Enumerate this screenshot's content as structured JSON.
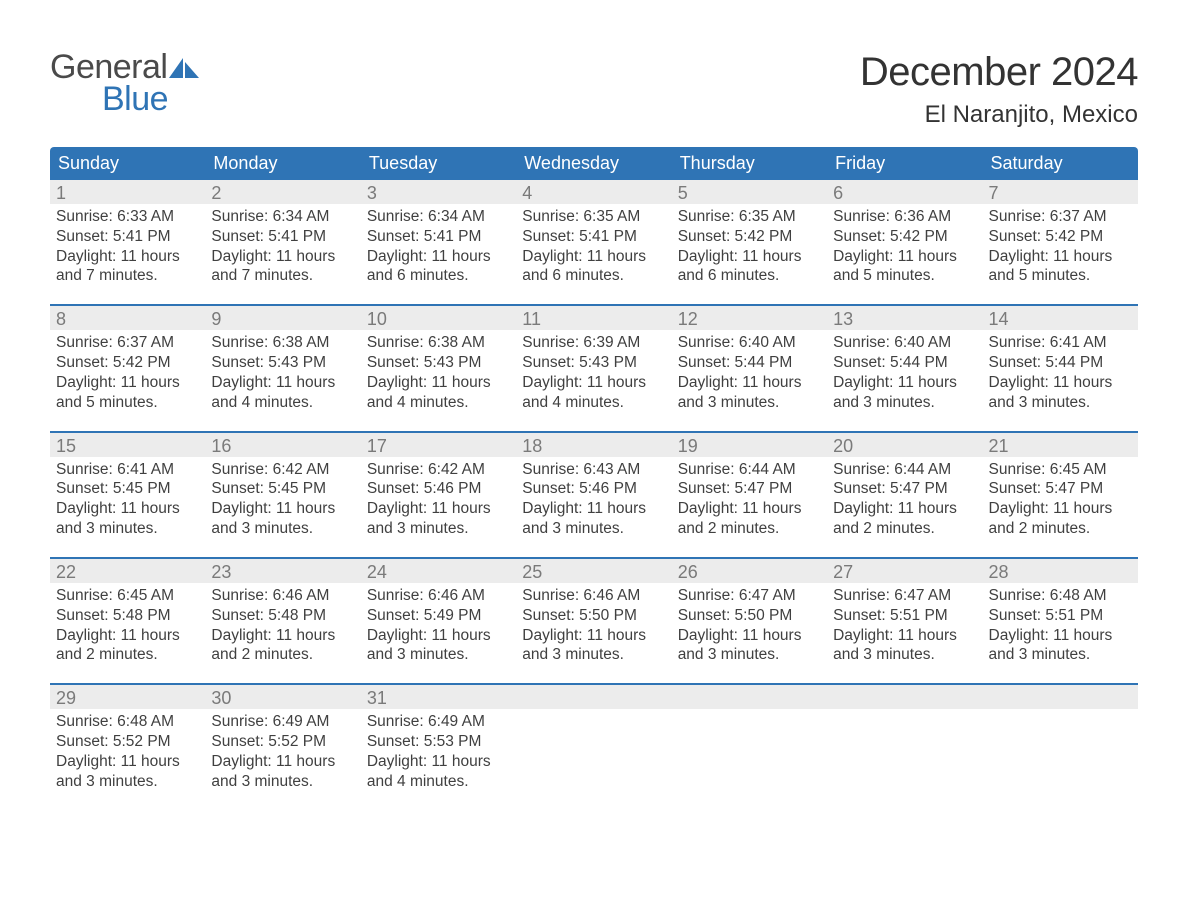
{
  "brand": {
    "general": "General",
    "blue": "Blue"
  },
  "colors": {
    "accent": "#2f74b5",
    "band": "#ececec",
    "text": "#404040",
    "muted": "#7a7a7a",
    "bg": "#ffffff"
  },
  "title": "December 2024",
  "location": "El Naranjito, Mexico",
  "dow": [
    "Sunday",
    "Monday",
    "Tuesday",
    "Wednesday",
    "Thursday",
    "Friday",
    "Saturday"
  ],
  "weeks": [
    [
      {
        "n": "1",
        "sr": "Sunrise: 6:33 AM",
        "ss": "Sunset: 5:41 PM",
        "d1": "Daylight: 11 hours",
        "d2": "and 7 minutes."
      },
      {
        "n": "2",
        "sr": "Sunrise: 6:34 AM",
        "ss": "Sunset: 5:41 PM",
        "d1": "Daylight: 11 hours",
        "d2": "and 7 minutes."
      },
      {
        "n": "3",
        "sr": "Sunrise: 6:34 AM",
        "ss": "Sunset: 5:41 PM",
        "d1": "Daylight: 11 hours",
        "d2": "and 6 minutes."
      },
      {
        "n": "4",
        "sr": "Sunrise: 6:35 AM",
        "ss": "Sunset: 5:41 PM",
        "d1": "Daylight: 11 hours",
        "d2": "and 6 minutes."
      },
      {
        "n": "5",
        "sr": "Sunrise: 6:35 AM",
        "ss": "Sunset: 5:42 PM",
        "d1": "Daylight: 11 hours",
        "d2": "and 6 minutes."
      },
      {
        "n": "6",
        "sr": "Sunrise: 6:36 AM",
        "ss": "Sunset: 5:42 PM",
        "d1": "Daylight: 11 hours",
        "d2": "and 5 minutes."
      },
      {
        "n": "7",
        "sr": "Sunrise: 6:37 AM",
        "ss": "Sunset: 5:42 PM",
        "d1": "Daylight: 11 hours",
        "d2": "and 5 minutes."
      }
    ],
    [
      {
        "n": "8",
        "sr": "Sunrise: 6:37 AM",
        "ss": "Sunset: 5:42 PM",
        "d1": "Daylight: 11 hours",
        "d2": "and 5 minutes."
      },
      {
        "n": "9",
        "sr": "Sunrise: 6:38 AM",
        "ss": "Sunset: 5:43 PM",
        "d1": "Daylight: 11 hours",
        "d2": "and 4 minutes."
      },
      {
        "n": "10",
        "sr": "Sunrise: 6:38 AM",
        "ss": "Sunset: 5:43 PM",
        "d1": "Daylight: 11 hours",
        "d2": "and 4 minutes."
      },
      {
        "n": "11",
        "sr": "Sunrise: 6:39 AM",
        "ss": "Sunset: 5:43 PM",
        "d1": "Daylight: 11 hours",
        "d2": "and 4 minutes."
      },
      {
        "n": "12",
        "sr": "Sunrise: 6:40 AM",
        "ss": "Sunset: 5:44 PM",
        "d1": "Daylight: 11 hours",
        "d2": "and 3 minutes."
      },
      {
        "n": "13",
        "sr": "Sunrise: 6:40 AM",
        "ss": "Sunset: 5:44 PM",
        "d1": "Daylight: 11 hours",
        "d2": "and 3 minutes."
      },
      {
        "n": "14",
        "sr": "Sunrise: 6:41 AM",
        "ss": "Sunset: 5:44 PM",
        "d1": "Daylight: 11 hours",
        "d2": "and 3 minutes."
      }
    ],
    [
      {
        "n": "15",
        "sr": "Sunrise: 6:41 AM",
        "ss": "Sunset: 5:45 PM",
        "d1": "Daylight: 11 hours",
        "d2": "and 3 minutes."
      },
      {
        "n": "16",
        "sr": "Sunrise: 6:42 AM",
        "ss": "Sunset: 5:45 PM",
        "d1": "Daylight: 11 hours",
        "d2": "and 3 minutes."
      },
      {
        "n": "17",
        "sr": "Sunrise: 6:42 AM",
        "ss": "Sunset: 5:46 PM",
        "d1": "Daylight: 11 hours",
        "d2": "and 3 minutes."
      },
      {
        "n": "18",
        "sr": "Sunrise: 6:43 AM",
        "ss": "Sunset: 5:46 PM",
        "d1": "Daylight: 11 hours",
        "d2": "and 3 minutes."
      },
      {
        "n": "19",
        "sr": "Sunrise: 6:44 AM",
        "ss": "Sunset: 5:47 PM",
        "d1": "Daylight: 11 hours",
        "d2": "and 2 minutes."
      },
      {
        "n": "20",
        "sr": "Sunrise: 6:44 AM",
        "ss": "Sunset: 5:47 PM",
        "d1": "Daylight: 11 hours",
        "d2": "and 2 minutes."
      },
      {
        "n": "21",
        "sr": "Sunrise: 6:45 AM",
        "ss": "Sunset: 5:47 PM",
        "d1": "Daylight: 11 hours",
        "d2": "and 2 minutes."
      }
    ],
    [
      {
        "n": "22",
        "sr": "Sunrise: 6:45 AM",
        "ss": "Sunset: 5:48 PM",
        "d1": "Daylight: 11 hours",
        "d2": "and 2 minutes."
      },
      {
        "n": "23",
        "sr": "Sunrise: 6:46 AM",
        "ss": "Sunset: 5:48 PM",
        "d1": "Daylight: 11 hours",
        "d2": "and 2 minutes."
      },
      {
        "n": "24",
        "sr": "Sunrise: 6:46 AM",
        "ss": "Sunset: 5:49 PM",
        "d1": "Daylight: 11 hours",
        "d2": "and 3 minutes."
      },
      {
        "n": "25",
        "sr": "Sunrise: 6:46 AM",
        "ss": "Sunset: 5:50 PM",
        "d1": "Daylight: 11 hours",
        "d2": "and 3 minutes."
      },
      {
        "n": "26",
        "sr": "Sunrise: 6:47 AM",
        "ss": "Sunset: 5:50 PM",
        "d1": "Daylight: 11 hours",
        "d2": "and 3 minutes."
      },
      {
        "n": "27",
        "sr": "Sunrise: 6:47 AM",
        "ss": "Sunset: 5:51 PM",
        "d1": "Daylight: 11 hours",
        "d2": "and 3 minutes."
      },
      {
        "n": "28",
        "sr": "Sunrise: 6:48 AM",
        "ss": "Sunset: 5:51 PM",
        "d1": "Daylight: 11 hours",
        "d2": "and 3 minutes."
      }
    ],
    [
      {
        "n": "29",
        "sr": "Sunrise: 6:48 AM",
        "ss": "Sunset: 5:52 PM",
        "d1": "Daylight: 11 hours",
        "d2": "and 3 minutes."
      },
      {
        "n": "30",
        "sr": "Sunrise: 6:49 AM",
        "ss": "Sunset: 5:52 PM",
        "d1": "Daylight: 11 hours",
        "d2": "and 3 minutes."
      },
      {
        "n": "31",
        "sr": "Sunrise: 6:49 AM",
        "ss": "Sunset: 5:53 PM",
        "d1": "Daylight: 11 hours",
        "d2": "and 4 minutes."
      },
      {
        "empty": true
      },
      {
        "empty": true
      },
      {
        "empty": true
      },
      {
        "empty": true
      }
    ]
  ]
}
